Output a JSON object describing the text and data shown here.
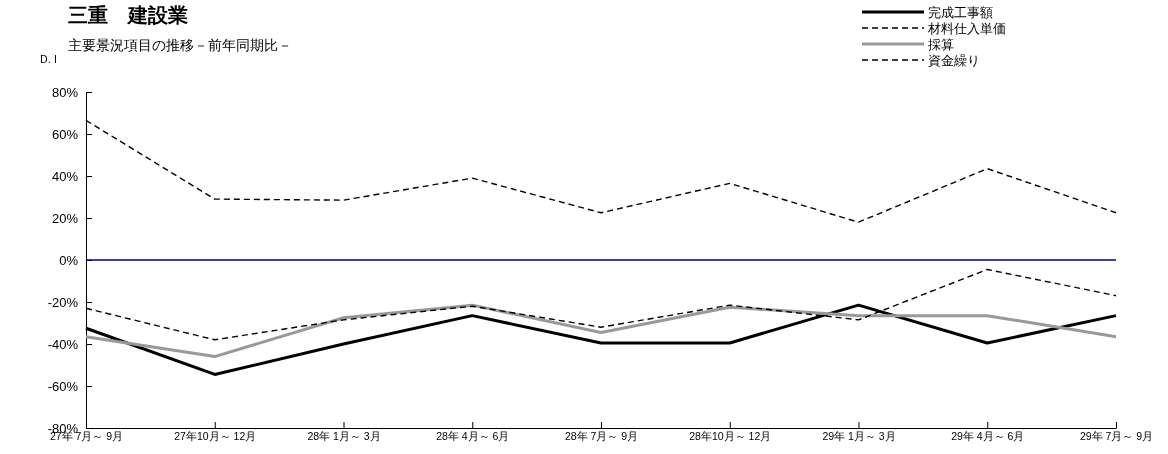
{
  "chart_data": {
    "type": "line",
    "title": "三重　建設業",
    "subtitle": "主要景況項目の推移－前年同期比－",
    "ylabel": "D. I",
    "categories": [
      "27年 7月～ 9月",
      "27年10月～ 12月",
      "28年 1月～ 3月",
      "28年 4月～ 6月",
      "28年 7月～ 9月",
      "28年10月～ 12月",
      "29年 1月～ 3月",
      "29年 4月～ 6月",
      "29年 7月～ 9月"
    ],
    "series": [
      {
        "name": "完成工事額",
        "color": "#000000",
        "line_style": "solid",
        "values": [
          -32.5,
          -54.5,
          -40,
          -26.5,
          -39.5,
          -39.5,
          -21.5,
          -39.5,
          -26.5
        ]
      },
      {
        "name": "材料仕入単価",
        "color": "#000000",
        "line_style": "dashed",
        "values": [
          66.5,
          29,
          28.5,
          39,
          22.5,
          36.5,
          18,
          43.5,
          22.5
        ]
      },
      {
        "name": "採算",
        "color": "#999999",
        "line_style": "solid",
        "values": [
          -36.5,
          -46,
          -27.5,
          -21.5,
          -34.5,
          -22.5,
          -26.5,
          -26.5,
          -36.5
        ]
      },
      {
        "name": "資金繰り",
        "color": "#000000",
        "line_style": "dashed",
        "values": [
          -23,
          -38,
          -28.5,
          -22,
          -32,
          -21.5,
          -28.5,
          -4.5,
          -17
        ]
      }
    ],
    "ylim": [
      -80,
      80
    ],
    "yticks": [
      {
        "value": -80,
        "label": "-80%"
      },
      {
        "value": -60,
        "label": "-60%"
      },
      {
        "value": -40,
        "label": "-40%"
      },
      {
        "value": -20,
        "label": "-20%"
      },
      {
        "value": 0,
        "label": "0%"
      },
      {
        "value": 20,
        "label": "20%"
      },
      {
        "value": 40,
        "label": "40%"
      },
      {
        "value": 60,
        "label": "60%"
      },
      {
        "value": 80,
        "label": "80%"
      }
    ],
    "ref_lines": [
      {
        "axis": "y",
        "value": 0,
        "color": "#000080"
      }
    ],
    "grid": false,
    "legend": "top right"
  }
}
